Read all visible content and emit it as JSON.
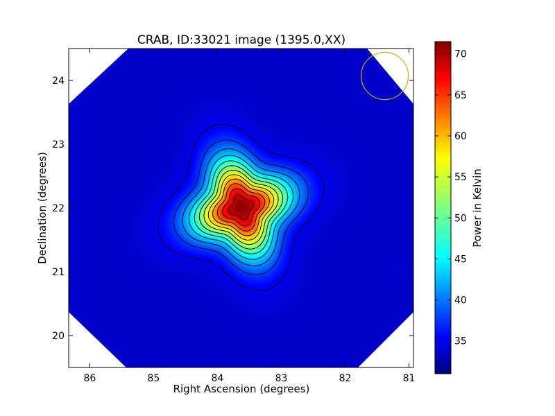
{
  "chart_data": {
    "type": "heatmap",
    "title": "CRAB, ID:33021 image (1395.0,XX)",
    "xlabel": "Right Ascension (degrees)",
    "ylabel": "Declination (degrees)",
    "xlim": [
      86.33,
      80.93
    ],
    "ylim": [
      19.5,
      24.5
    ],
    "x_ticks": [
      86,
      85,
      84,
      83,
      82,
      81
    ],
    "x_tick_labels": [
      "86",
      "85",
      "84",
      "83",
      "82",
      "81"
    ],
    "y_ticks": [
      20,
      21,
      22,
      23,
      24
    ],
    "y_tick_labels": [
      "20",
      "21",
      "22",
      "23",
      "24"
    ],
    "colorbar": {
      "label": "Power in Kelvin",
      "range": [
        31,
        71.5
      ],
      "ticks": [
        35,
        40,
        45,
        50,
        55,
        60,
        65,
        70
      ],
      "tick_labels": [
        "35",
        "40",
        "45",
        "50",
        "55",
        "60",
        "65",
        "70"
      ],
      "colormap": "jet"
    },
    "source": {
      "ra": 83.63,
      "dec": 22.01,
      "peak_kelvin": 71,
      "background_kelvin": 34
    },
    "beam_circle": {
      "ra": 81.38,
      "dec": 24.07,
      "radius_deg": 0.37,
      "color": "#c8b400"
    },
    "contour_step_kelvin": 3
  }
}
